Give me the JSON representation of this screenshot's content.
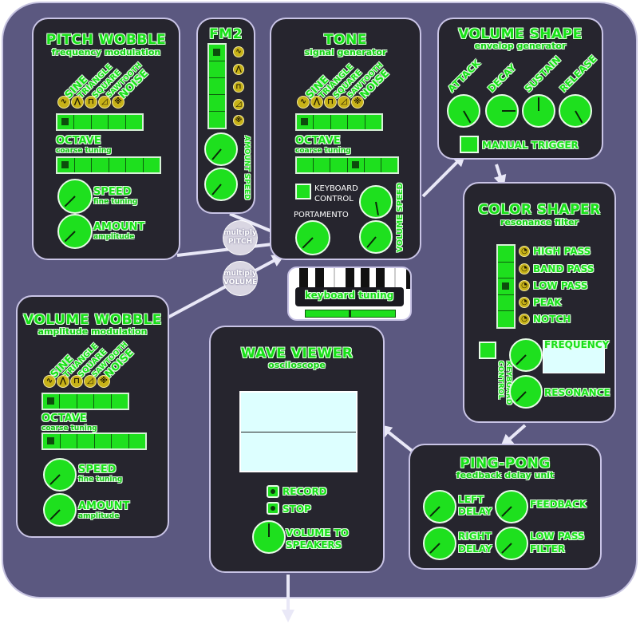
{
  "waveforms": [
    "SINE",
    "TRIANGLE",
    "SQUARE",
    "SAWTOOTH",
    "NOISE"
  ],
  "pitch_wobble": {
    "title": "PITCH WOBBLE",
    "subtitle": "frequency modulation",
    "octave_label": "OCTAVE",
    "octave_sub": "coarse tuning",
    "speed_label": "SPEED",
    "speed_sub": "fine tuning",
    "amount_label": "AMOUNT",
    "amount_sub": "amplitude"
  },
  "fm2": {
    "title": "FM2",
    "amount_speed": "AMOUNT SPEED"
  },
  "tone": {
    "title": "TONE",
    "subtitle": "signal generator",
    "octave_label": "OCTAVE",
    "octave_sub": "coarse tuning",
    "keyboard_control": "KEYBOARD CONTROL",
    "portamento": "PORTAMENTO",
    "volume_speed": "VOLUME SPEED"
  },
  "volume_shape": {
    "title": "VOLUME SHAPE",
    "subtitle": "envelop generator",
    "attack": "ATTACK",
    "decay": "DECAY",
    "sustain": "SUSTAIN",
    "release": "RELEASE",
    "manual_trigger": "MANUAL TRIGGER"
  },
  "color_shaper": {
    "title": "COLOR SHAPER",
    "subtitle": "resonance filter",
    "filters": [
      "HIGH PASS",
      "BAND PASS",
      "LOW PASS",
      "PEAK",
      "NOTCH"
    ],
    "keyboard_control": "KEYBOARD CONTROL",
    "frequency": "FREQUENCY",
    "resonance": "RESONANCE"
  },
  "volume_wobble": {
    "title": "VOLUME WOBBLE",
    "subtitle": "amplitude modulation",
    "octave_label": "OCTAVE",
    "octave_sub": "coarse tuning",
    "speed_label": "SPEED",
    "speed_sub": "fine tuning",
    "amount_label": "AMOUNT",
    "amount_sub": "amplitude"
  },
  "wave_viewer": {
    "title": "WAVE VIEWER",
    "subtitle": "osciloscope",
    "record": "RECORD",
    "stop": "STOP",
    "volume_to": "VOLUME TO",
    "speakers": "SPEAKERS"
  },
  "ping_pong": {
    "title": "PING-PONG",
    "subtitle": "feedback delay unit",
    "left_delay_1": "LEFT",
    "left_delay_2": "DELAY",
    "feedback": "FEEDBACK",
    "right_delay_1": "RIGHT",
    "right_delay_2": "DELAY",
    "low_pass_1": "LOW PASS",
    "low_pass_2": "FILTER"
  },
  "keyboard_tuning": {
    "label": "keyboard tuning"
  },
  "multiply_pitch": {
    "line1": "multiply",
    "line2": "PITCH"
  },
  "multiply_volume": {
    "line1": "multiply",
    "line2": "VOLUME"
  },
  "colors": {
    "accent": "#1ee01e",
    "panel": "#26252e",
    "board": "#5b5880",
    "border": "#c9c4e6",
    "screen": "#ddffff"
  }
}
